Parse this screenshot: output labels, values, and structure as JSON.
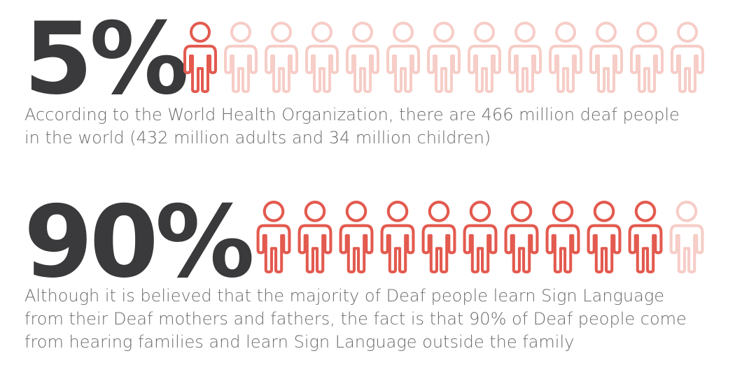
{
  "colors": {
    "number": "#3a3a3c",
    "text": "#6b6b6d",
    "person_active": "#e35a4f",
    "person_inactive": "#f6cdc7"
  },
  "icon": "person-outline-icon",
  "stats": [
    {
      "number": "5%",
      "active_people": 1,
      "total_people": 13,
      "description_lines": [
        "According to the World Health Organization, there are 466 million deaf people",
        "in the world (432 million adults and 34 million children)"
      ]
    },
    {
      "number": "90%",
      "active_people": 10,
      "total_people": 11,
      "description_lines": [
        "Although it is believed that the majority of Deaf people learn Sign Language",
        "from their Deaf mothers and fathers, the fact is that 90% of Deaf people come",
        "from hearing families and learn Sign Language outside the family"
      ]
    }
  ]
}
